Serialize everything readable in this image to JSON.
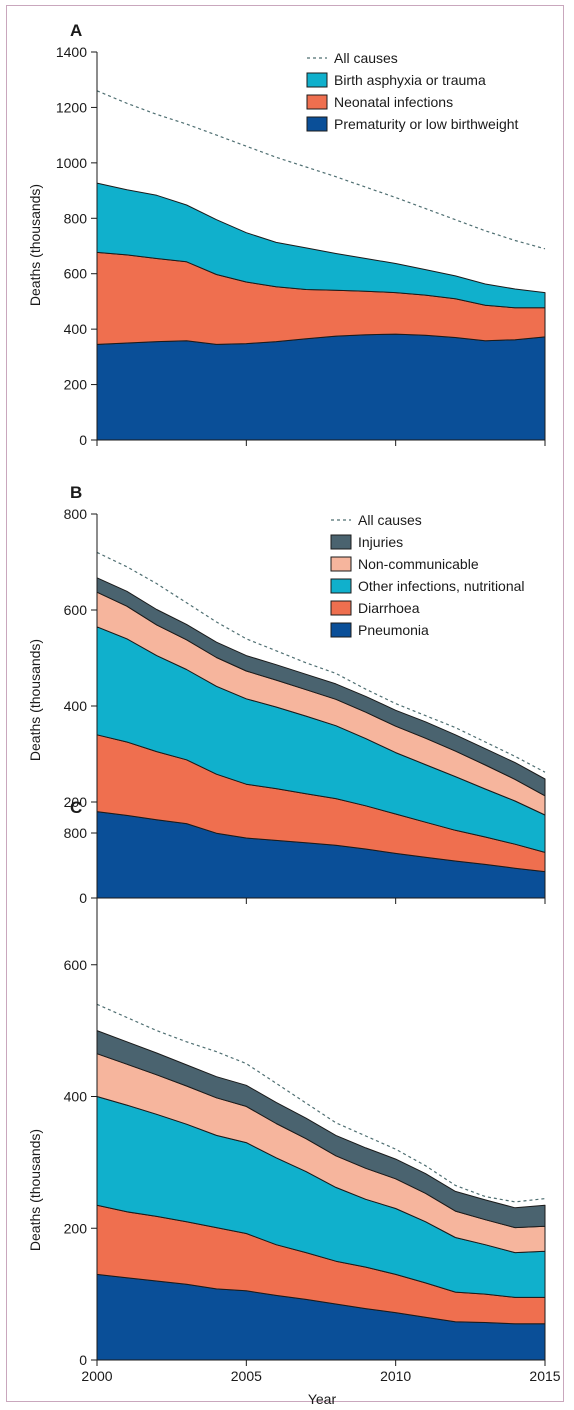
{
  "colors": {
    "prematurity": "#0a4f98",
    "neonatal_infections": "#ef6f4f",
    "birth_asphyxia": "#10b0cc",
    "pneumonia": "#0a4f98",
    "diarrhoea": "#ef6f4f",
    "other_infections": "#10b0cc",
    "non_communicable": "#f6b59d",
    "injuries": "#4a636f",
    "all_causes_line": "#4f6f72"
  },
  "chart_data": [
    {
      "type": "area",
      "panel": "A",
      "ylabel": "Deaths (thousands)",
      "ylim": [
        0,
        1400
      ],
      "yticks": [
        "0",
        "200",
        "400",
        "600",
        "800",
        "1000",
        "1200",
        "1400"
      ],
      "x": [
        2000,
        2001,
        2002,
        2003,
        2004,
        2005,
        2006,
        2007,
        2008,
        2009,
        2010,
        2011,
        2012,
        2013,
        2014,
        2015
      ],
      "xlim": [
        2000,
        2015
      ],
      "series": [
        {
          "name": "Prematurity or low birthweight",
          "color_key": "prematurity",
          "values": [
            345,
            350,
            355,
            358,
            345,
            348,
            355,
            365,
            375,
            380,
            382,
            378,
            370,
            358,
            362,
            372
          ]
        },
        {
          "name": "Neonatal infections",
          "color_key": "neonatal_infections",
          "values": [
            332,
            318,
            300,
            285,
            252,
            222,
            198,
            178,
            165,
            157,
            150,
            145,
            140,
            128,
            115,
            105
          ]
        },
        {
          "name": "Birth asphyxia or trauma",
          "color_key": "birth_asphyxia",
          "values": [
            250,
            235,
            228,
            205,
            198,
            178,
            160,
            150,
            133,
            118,
            105,
            92,
            82,
            77,
            68,
            55
          ]
        }
      ],
      "all_causes": {
        "name": "All causes",
        "values": [
          1260,
          1215,
          1175,
          1140,
          1100,
          1060,
          1020,
          985,
          950,
          912,
          875,
          835,
          795,
          755,
          720,
          690
        ]
      },
      "legend_order": [
        "All causes",
        "Birth asphyxia or trauma",
        "Neonatal infections",
        "Prematurity or low birthweight"
      ]
    },
    {
      "type": "area",
      "panel": "B",
      "ylabel": "Deaths (thousands)",
      "ylim": [
        0,
        800
      ],
      "yticks": [
        "0",
        "200",
        "400",
        "600",
        "800"
      ],
      "x": [
        2000,
        2001,
        2002,
        2003,
        2004,
        2005,
        2006,
        2007,
        2008,
        2009,
        2010,
        2011,
        2012,
        2013,
        2014,
        2015
      ],
      "xlim": [
        2000,
        2015
      ],
      "series": [
        {
          "name": "Pneumonia",
          "color_key": "pneumonia",
          "values": [
            180,
            172,
            163,
            155,
            135,
            125,
            120,
            115,
            110,
            102,
            93,
            85,
            77,
            70,
            62,
            55
          ]
        },
        {
          "name": "Diarrhoea",
          "color_key": "diarrhoea",
          "values": [
            160,
            153,
            142,
            133,
            123,
            112,
            108,
            102,
            97,
            90,
            82,
            73,
            64,
            57,
            50,
            40
          ]
        },
        {
          "name": "Other infections, nutritional",
          "color_key": "other_infections",
          "values": [
            225,
            215,
            200,
            188,
            183,
            178,
            170,
            162,
            152,
            140,
            128,
            120,
            112,
            100,
            90,
            78
          ]
        },
        {
          "name": "Non-communicable",
          "color_key": "non_communicable",
          "values": [
            72,
            68,
            64,
            62,
            60,
            58,
            56,
            55,
            55,
            55,
            55,
            55,
            53,
            50,
            45,
            40
          ]
        },
        {
          "name": "Injuries",
          "color_key": "injuries",
          "values": [
            30,
            31,
            32,
            32,
            32,
            32,
            32,
            32,
            32,
            33,
            33,
            34,
            34,
            34,
            35,
            35
          ]
        }
      ],
      "all_causes": {
        "name": "All causes",
        "values": [
          720,
          690,
          655,
          615,
          575,
          540,
          515,
          490,
          468,
          435,
          405,
          380,
          355,
          325,
          295,
          262
        ]
      },
      "legend_order": [
        "All causes",
        "Injuries",
        "Non-communicable",
        "Other infections, nutritional",
        "Diarrhoea",
        "Pneumonia"
      ]
    },
    {
      "type": "area",
      "panel": "C",
      "ylabel": "Deaths (thousands)",
      "xlabel": "Year",
      "ylim": [
        0,
        800
      ],
      "yticks": [
        "0",
        "200",
        "400",
        "600",
        "800"
      ],
      "xticks": [
        "2000",
        "2005",
        "2010",
        "2015"
      ],
      "x": [
        2000,
        2001,
        2002,
        2003,
        2004,
        2005,
        2006,
        2007,
        2008,
        2009,
        2010,
        2011,
        2012,
        2013,
        2014,
        2015
      ],
      "xlim": [
        2000,
        2015
      ],
      "series": [
        {
          "name": "Pneumonia",
          "color_key": "pneumonia",
          "values": [
            130,
            125,
            120,
            115,
            108,
            105,
            98,
            92,
            85,
            78,
            72,
            65,
            58,
            57,
            55,
            55
          ]
        },
        {
          "name": "Diarrhoea",
          "color_key": "diarrhoea",
          "values": [
            105,
            100,
            98,
            95,
            93,
            87,
            77,
            71,
            65,
            63,
            58,
            52,
            45,
            43,
            40,
            40
          ]
        },
        {
          "name": "Other infections, nutritional",
          "color_key": "other_infections",
          "values": [
            165,
            162,
            155,
            148,
            140,
            138,
            132,
            123,
            112,
            103,
            100,
            93,
            83,
            75,
            68,
            70
          ]
        },
        {
          "name": "Non-communicable",
          "color_key": "non_communicable",
          "values": [
            65,
            62,
            60,
            58,
            57,
            55,
            52,
            50,
            48,
            47,
            45,
            43,
            40,
            38,
            38,
            38
          ]
        },
        {
          "name": "Injuries",
          "color_key": "injuries",
          "values": [
            35,
            34,
            33,
            32,
            32,
            32,
            32,
            31,
            31,
            31,
            30,
            30,
            30,
            30,
            30,
            32
          ]
        }
      ],
      "all_causes": {
        "name": "All causes",
        "values": [
          540,
          520,
          500,
          483,
          468,
          450,
          420,
          390,
          360,
          340,
          320,
          295,
          265,
          248,
          240,
          245
        ]
      }
    }
  ]
}
